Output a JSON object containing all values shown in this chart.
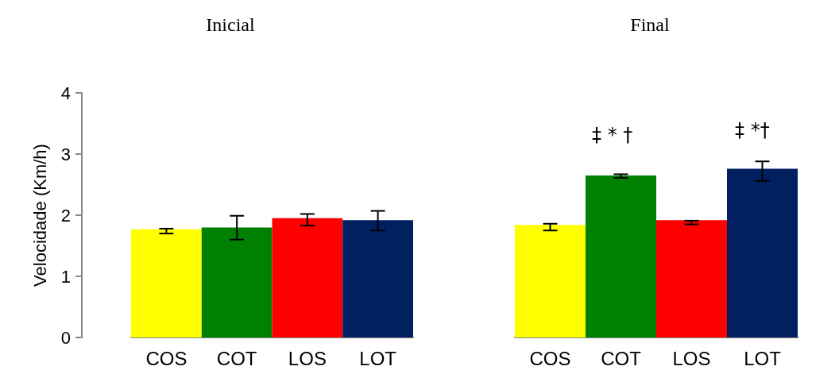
{
  "chart_data": [
    {
      "type": "bar",
      "title": "Inicial",
      "ylabel": "Velocidade (Km/h)",
      "categories": [
        "COS",
        "COT",
        "LOS",
        "LOT"
      ],
      "values": [
        1.77,
        1.8,
        1.95,
        1.92
      ],
      "colors": [
        "#ffff00",
        "#008000",
        "#ff0000",
        "#002060"
      ],
      "errors": [
        [
          1.7,
          1.78
        ],
        [
          1.6,
          1.99
        ],
        [
          1.83,
          2.02
        ],
        [
          1.75,
          2.07
        ]
      ],
      "ylim": [
        0,
        4
      ],
      "yticks": [
        0,
        1,
        2,
        3,
        4
      ],
      "grid": false
    },
    {
      "type": "bar",
      "title": "Final",
      "categories": [
        "COS",
        "COT",
        "LOS",
        "LOT"
      ],
      "values": [
        1.84,
        2.65,
        1.92,
        2.76
      ],
      "colors": [
        "#ffff00",
        "#008000",
        "#ff0000",
        "#002060"
      ],
      "errors": [
        [
          1.75,
          1.86
        ],
        [
          2.61,
          2.67
        ],
        [
          1.85,
          1.91
        ],
        [
          2.56,
          2.88
        ]
      ],
      "ylim": [
        0,
        4
      ],
      "yticks": [
        0,
        1,
        2,
        3,
        4
      ],
      "tick_labels": "x",
      "grid": false,
      "annotations": [
        "‡ * †",
        "‡ *†"
      ]
    }
  ]
}
